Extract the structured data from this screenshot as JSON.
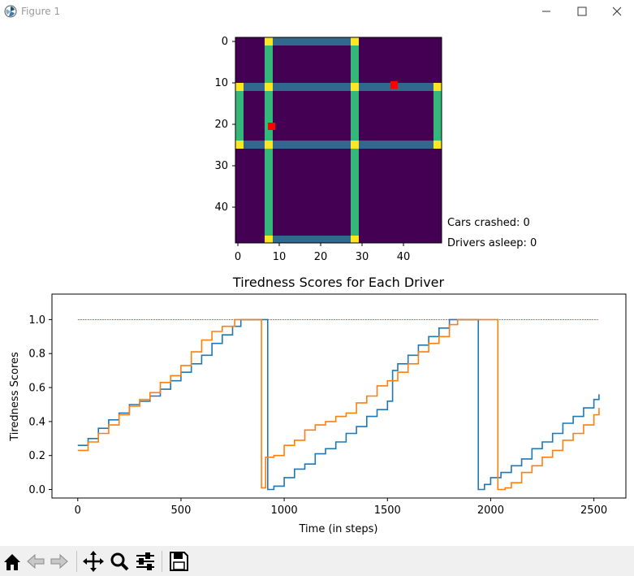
{
  "window": {
    "title": "Figure 1"
  },
  "grid_plot": {
    "yticks": [
      "0",
      "10",
      "20",
      "30",
      "40"
    ],
    "xticks": [
      "0",
      "10",
      "20",
      "30",
      "40"
    ]
  },
  "status": {
    "crashed": "Cars crashed: 0",
    "asleep": "Drivers asleep: 0"
  },
  "chart_data": {
    "type": "line",
    "title": "Tiredness Scores for Each Driver",
    "xlabel": "Time (in steps)",
    "ylabel": "Tiredness Scores",
    "xlim": [
      -125,
      2655
    ],
    "ylim": [
      -0.05,
      1.15
    ],
    "xticks": [
      0,
      500,
      1000,
      1500,
      2000,
      2500
    ],
    "xtick_labels": [
      "0",
      "500",
      "1000",
      "1500",
      "2000",
      "2500"
    ],
    "yticks": [
      0.0,
      0.2,
      0.4,
      0.6,
      0.8,
      1.0
    ],
    "ytick_labels": [
      "0.0",
      "0.2",
      "0.4",
      "0.6",
      "0.8",
      "1.0"
    ],
    "threshold": {
      "y": 1.0,
      "x": [
        0,
        2520
      ],
      "color": "#d62728"
    },
    "series": [
      {
        "color": "#1f77b4",
        "points": [
          [
            0,
            0.26
          ],
          [
            50,
            0.3
          ],
          [
            100,
            0.36
          ],
          [
            150,
            0.41
          ],
          [
            200,
            0.45
          ],
          [
            250,
            0.5
          ],
          [
            300,
            0.52
          ],
          [
            350,
            0.55
          ],
          [
            400,
            0.59
          ],
          [
            450,
            0.64
          ],
          [
            500,
            0.69
          ],
          [
            550,
            0.74
          ],
          [
            600,
            0.79
          ],
          [
            650,
            0.86
          ],
          [
            700,
            0.91
          ],
          [
            750,
            0.96
          ],
          [
            790,
            1.0
          ],
          [
            920,
            1.0
          ],
          [
            920,
            0.0
          ],
          [
            950,
            0.02
          ],
          [
            1000,
            0.07
          ],
          [
            1050,
            0.12
          ],
          [
            1100,
            0.15
          ],
          [
            1150,
            0.21
          ],
          [
            1200,
            0.24
          ],
          [
            1250,
            0.28
          ],
          [
            1300,
            0.33
          ],
          [
            1350,
            0.37
          ],
          [
            1400,
            0.43
          ],
          [
            1450,
            0.47
          ],
          [
            1500,
            0.52
          ],
          [
            1525,
            0.56
          ],
          [
            1525,
            0.7
          ],
          [
            1550,
            0.74
          ],
          [
            1600,
            0.79
          ],
          [
            1650,
            0.85
          ],
          [
            1700,
            0.9
          ],
          [
            1750,
            0.95
          ],
          [
            1800,
            1.0
          ],
          [
            1940,
            1.0
          ],
          [
            1940,
            0.0
          ],
          [
            1970,
            0.03
          ],
          [
            2000,
            0.07
          ],
          [
            2050,
            0.1
          ],
          [
            2100,
            0.14
          ],
          [
            2150,
            0.18
          ],
          [
            2200,
            0.24
          ],
          [
            2250,
            0.28
          ],
          [
            2300,
            0.33
          ],
          [
            2350,
            0.39
          ],
          [
            2400,
            0.43
          ],
          [
            2450,
            0.48
          ],
          [
            2500,
            0.53
          ],
          [
            2525,
            0.56
          ]
        ]
      },
      {
        "color": "#ff7f0e",
        "points": [
          [
            0,
            0.23
          ],
          [
            50,
            0.28
          ],
          [
            100,
            0.33
          ],
          [
            150,
            0.38
          ],
          [
            200,
            0.44
          ],
          [
            250,
            0.49
          ],
          [
            300,
            0.53
          ],
          [
            350,
            0.57
          ],
          [
            400,
            0.63
          ],
          [
            450,
            0.67
          ],
          [
            500,
            0.73
          ],
          [
            550,
            0.81
          ],
          [
            600,
            0.88
          ],
          [
            650,
            0.93
          ],
          [
            700,
            0.96
          ],
          [
            760,
            1.0
          ],
          [
            890,
            1.0
          ],
          [
            890,
            0.01
          ],
          [
            910,
            0.19
          ],
          [
            950,
            0.2
          ],
          [
            1000,
            0.26
          ],
          [
            1050,
            0.29
          ],
          [
            1100,
            0.35
          ],
          [
            1150,
            0.38
          ],
          [
            1200,
            0.4
          ],
          [
            1250,
            0.43
          ],
          [
            1300,
            0.45
          ],
          [
            1350,
            0.51
          ],
          [
            1400,
            0.55
          ],
          [
            1450,
            0.61
          ],
          [
            1500,
            0.64
          ],
          [
            1550,
            0.69
          ],
          [
            1600,
            0.74
          ],
          [
            1650,
            0.81
          ],
          [
            1700,
            0.86
          ],
          [
            1750,
            0.9
          ],
          [
            1800,
            0.97
          ],
          [
            1840,
            1.0
          ],
          [
            2035,
            1.0
          ],
          [
            2035,
            0.0
          ],
          [
            2070,
            0.01
          ],
          [
            2100,
            0.04
          ],
          [
            2150,
            0.1
          ],
          [
            2200,
            0.14
          ],
          [
            2250,
            0.19
          ],
          [
            2300,
            0.23
          ],
          [
            2350,
            0.29
          ],
          [
            2400,
            0.33
          ],
          [
            2450,
            0.38
          ],
          [
            2500,
            0.44
          ],
          [
            2525,
            0.48
          ]
        ]
      }
    ]
  },
  "toolbar": {
    "buttons": [
      {
        "name": "home-button",
        "icon": "home-icon"
      },
      {
        "name": "back-button",
        "icon": "arrow-left-icon"
      },
      {
        "name": "forward-button",
        "icon": "arrow-right-icon"
      },
      {
        "name": "pan-button",
        "icon": "move-icon"
      },
      {
        "name": "zoom-button",
        "icon": "magnifier-icon"
      },
      {
        "name": "configure-subplots-button",
        "icon": "sliders-icon"
      },
      {
        "name": "save-button",
        "icon": "floppy-icon"
      }
    ]
  }
}
